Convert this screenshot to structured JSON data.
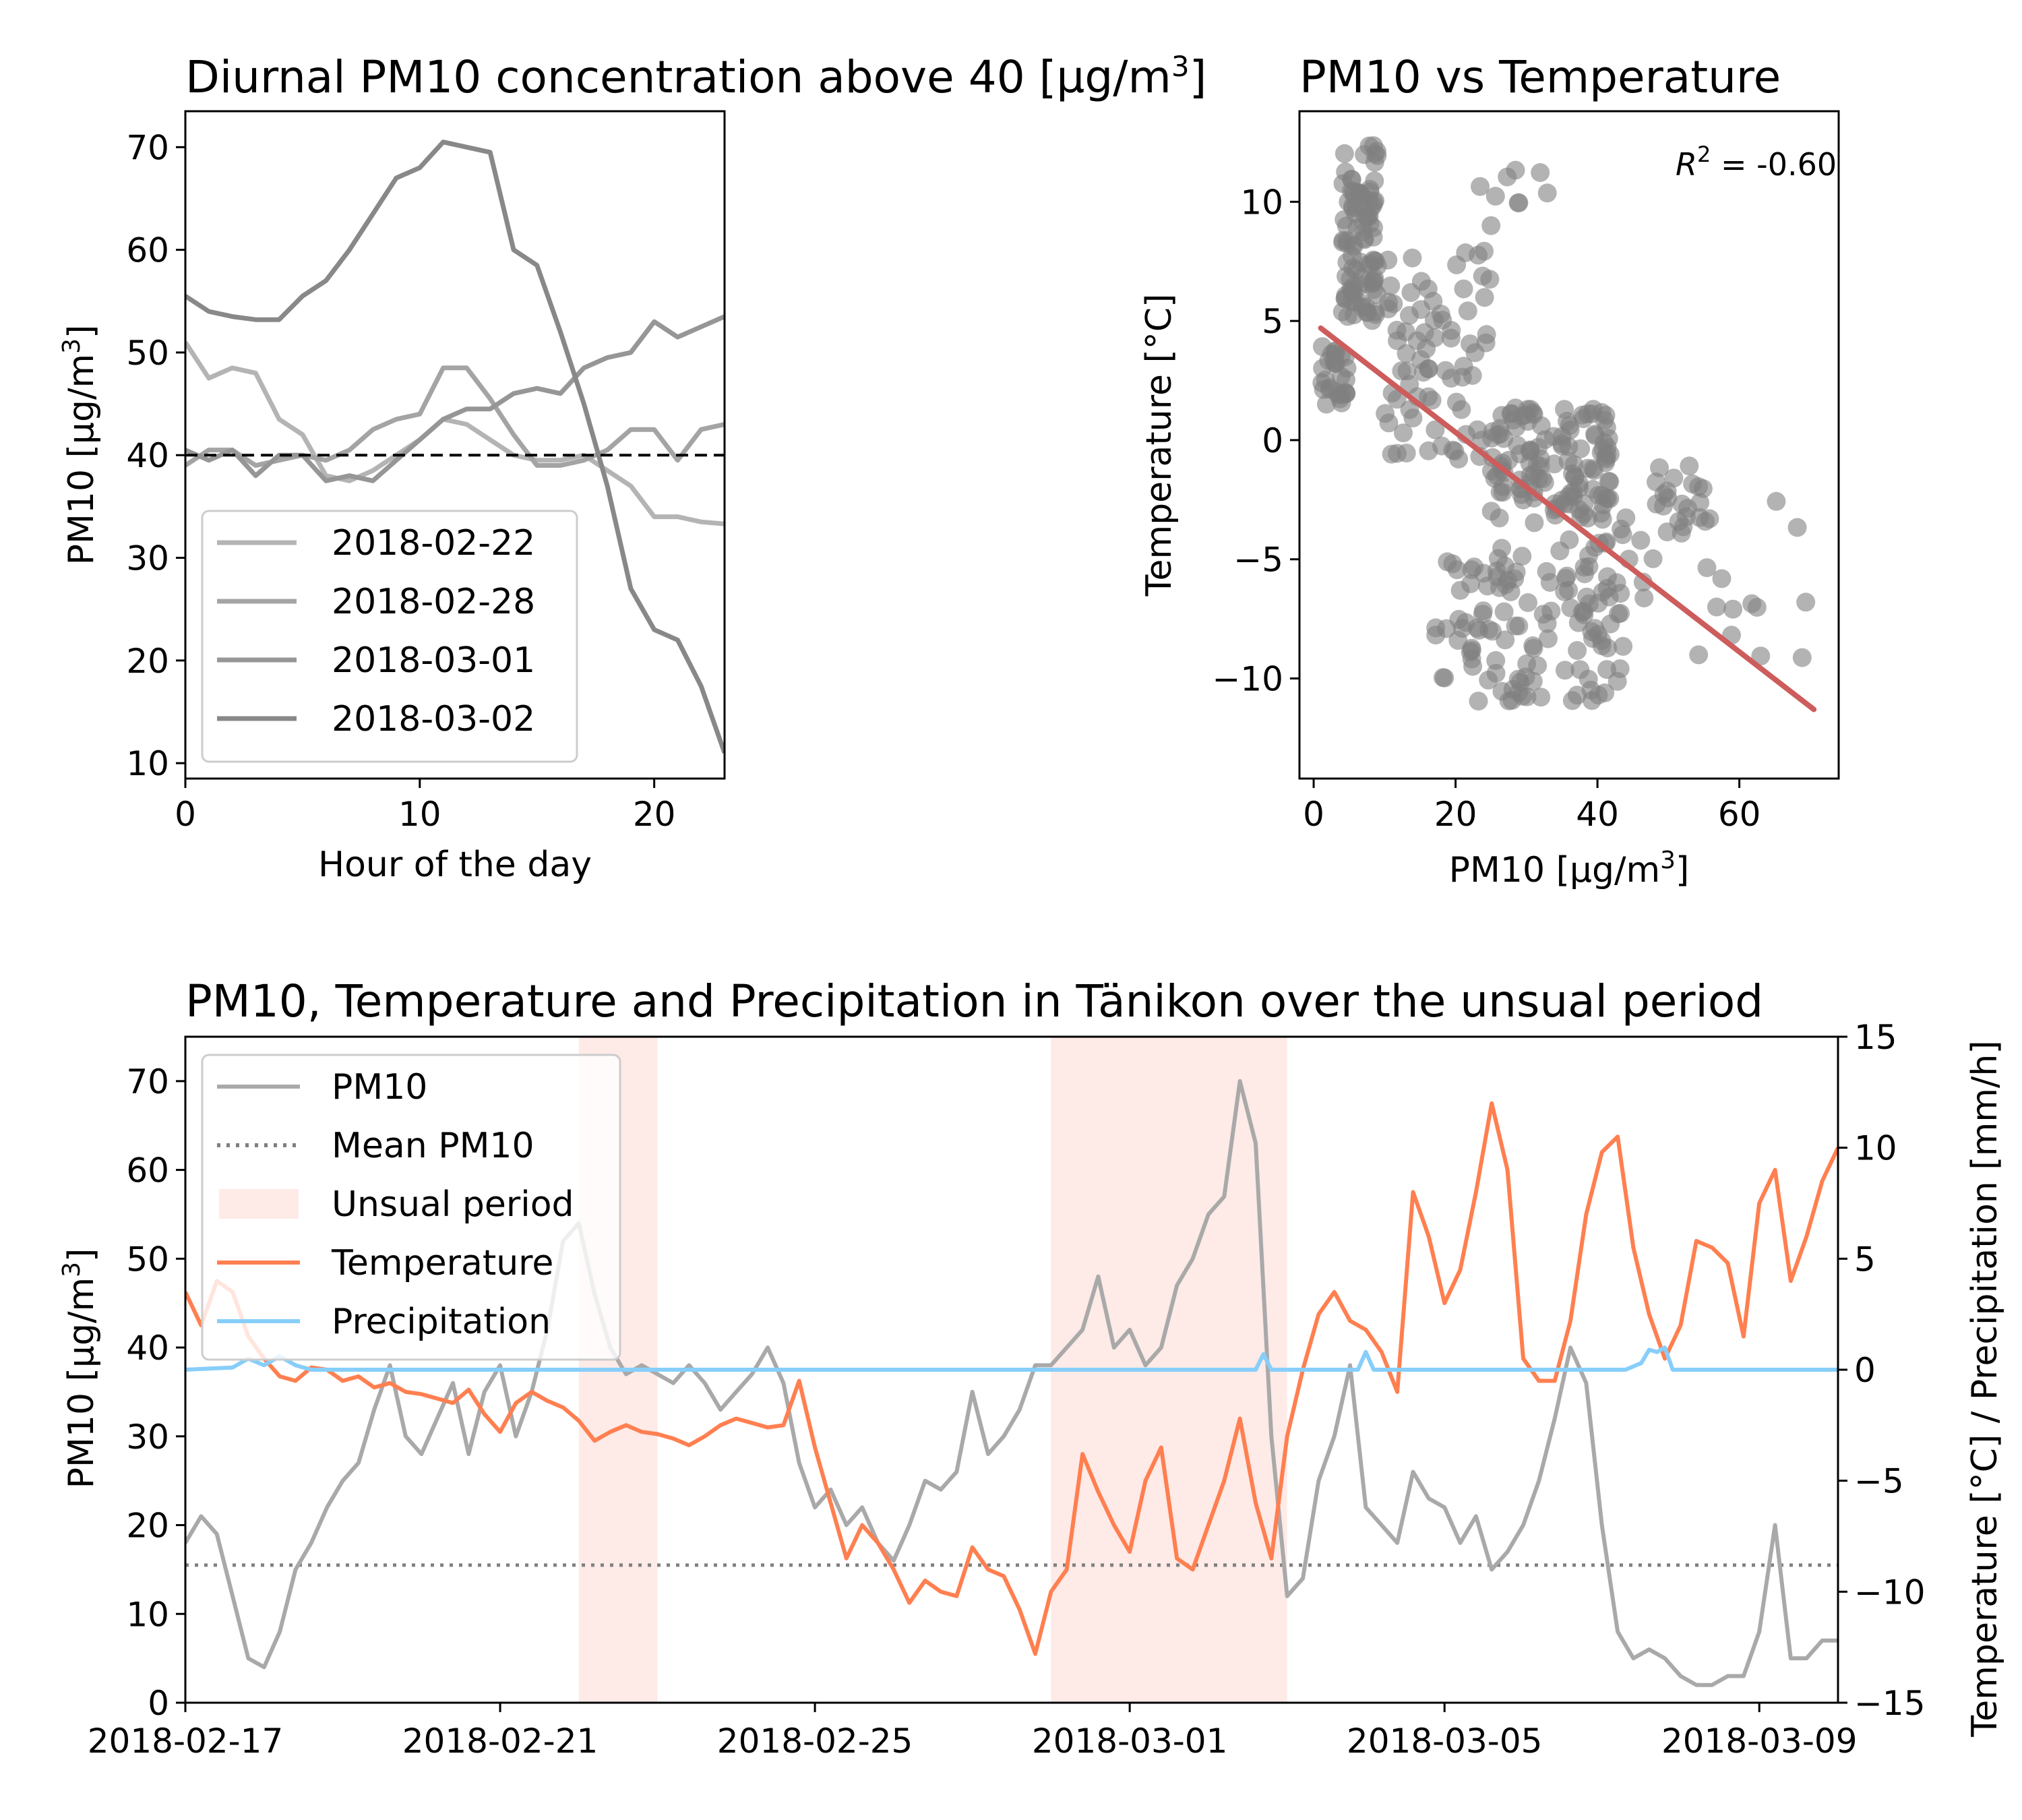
{
  "colors": {
    "pm10_gray": "#a9a9a9",
    "day1": "#b4b4b4",
    "day2": "#a4a4a4",
    "day3": "#969696",
    "day4": "#888888",
    "regression": "#cd5c5c",
    "scatter": "#808080",
    "temperature": "#ff7f50",
    "precipitation": "#87cefa",
    "unusual": "#fde3df"
  },
  "chart_data": [
    {
      "id": "diurnal",
      "type": "line",
      "title": "Diurnal PM10 concentration above 40 [µg/m³]",
      "xlabel": "Hour of the day",
      "ylabel": "PM10 [µg/m³]",
      "xlim": [
        0,
        23
      ],
      "ylim": [
        8.5,
        73.5
      ],
      "xticks": [
        0,
        10,
        20
      ],
      "yticks": [
        10,
        20,
        30,
        40,
        50,
        60,
        70
      ],
      "threshold": 40,
      "legend_position": "lower-left",
      "x": [
        0,
        1,
        2,
        3,
        4,
        5,
        6,
        7,
        8,
        9,
        10,
        11,
        12,
        13,
        14,
        15,
        16,
        17,
        18,
        19,
        20,
        21,
        22,
        23
      ],
      "series": [
        {
          "name": "2018-02-22",
          "color": "day1",
          "values": [
            51,
            47.5,
            48.5,
            48,
            43.5,
            42,
            38,
            37.5,
            38.5,
            40,
            41.5,
            43.5,
            43,
            41.5,
            40,
            39.5,
            39.5,
            40,
            38.5,
            37,
            34,
            34,
            33.5,
            33.3
          ]
        },
        {
          "name": "2018-02-28",
          "color": "day2",
          "values": [
            39,
            40.5,
            40.5,
            39,
            39.5,
            40,
            39.5,
            40.5,
            42.5,
            43.5,
            44,
            48.5,
            48.5,
            45.5,
            42,
            39,
            39,
            39.5,
            40.5,
            42.5,
            42.5,
            39.5,
            42.5,
            43
          ]
        },
        {
          "name": "2018-03-01",
          "color": "day3",
          "values": [
            40.5,
            39.5,
            40.5,
            38,
            40,
            40,
            37.5,
            38,
            37.5,
            39.5,
            41.5,
            43.5,
            44.5,
            44.5,
            46,
            46.5,
            46,
            48.5,
            49.5,
            50,
            53,
            51.5,
            52.5,
            53.5
          ]
        },
        {
          "name": "2018-03-02",
          "color": "day4",
          "values": [
            55.5,
            54,
            53.5,
            53.2,
            53.2,
            55.5,
            57,
            60,
            63.5,
            67,
            68,
            70.5,
            70,
            69.5,
            60,
            58.5,
            52,
            45,
            37,
            27,
            23,
            22,
            17.5,
            11
          ]
        }
      ]
    },
    {
      "id": "scatter",
      "type": "scatter",
      "title": "PM10 vs Temperature",
      "xlabel": "PM10 [µg/m³]",
      "ylabel": "Temperature [°C]",
      "xlim": [
        -2,
        74
      ],
      "ylim": [
        -14.2,
        13.8
      ],
      "xticks": [
        0,
        20,
        40,
        60
      ],
      "yticks": [
        -10,
        -5,
        0,
        5,
        10
      ],
      "annotation_prefix": "R",
      "annotation_sup": "2",
      "annotation_value": " =  -0.60",
      "regression": {
        "x": [
          1,
          70.5
        ],
        "y": [
          4.7,
          -11.3
        ]
      },
      "clusters": [
        {
          "x": [
            4,
            9
          ],
          "y": [
            5,
            12.5
          ],
          "n": 95
        },
        {
          "x": [
            1,
            5
          ],
          "y": [
            1.5,
            4
          ],
          "n": 30
        },
        {
          "x": [
            10,
            25
          ],
          "y": [
            -1,
            8
          ],
          "n": 75
        },
        {
          "x": [
            25,
            42
          ],
          "y": [
            -3.5,
            1.5
          ],
          "n": 125
        },
        {
          "x": [
            17,
            44
          ],
          "y": [
            -11,
            -4.5
          ],
          "n": 105
        },
        {
          "x": [
            36,
            48
          ],
          "y": [
            -8.5,
            -3
          ],
          "n": 30
        },
        {
          "x": [
            48,
            56
          ],
          "y": [
            -4,
            -1
          ],
          "n": 22
        },
        {
          "x": [
            52,
            70
          ],
          "y": [
            -9.5,
            -1.5
          ],
          "n": 14
        },
        {
          "x": [
            16,
            34
          ],
          "y": [
            9,
            11.5
          ],
          "n": 9
        }
      ]
    },
    {
      "id": "timeseries",
      "type": "line",
      "title": "PM10, Temperature and Precipitation in Tänikon over the unsual period",
      "ylabel": "PM10 [µg/m³]",
      "ylabel_right": "Temperature [°C] / Precipitation [mm/h]",
      "x_dates": [
        "2018-02-17",
        "2018-02-21",
        "2018-02-25",
        "2018-03-01",
        "2018-03-05",
        "2018-03-09"
      ],
      "xlim_days": [
        0,
        21
      ],
      "ylim": [
        0,
        75
      ],
      "yticks": [
        0,
        10,
        20,
        30,
        40,
        50,
        60,
        70
      ],
      "ylim_right": [
        -15,
        15
      ],
      "yticks_right": [
        -15,
        -10,
        -5,
        0,
        5,
        10,
        15
      ],
      "mean_pm10": 15.5,
      "legend_position": "upper-left",
      "legend": [
        "PM10",
        "Mean PM10",
        "Unsual period",
        "Temperature",
        "Precipitation"
      ],
      "unusual_periods": [
        [
          5,
          6
        ],
        [
          11,
          14
        ]
      ],
      "pm10": {
        "name": "PM10",
        "days": [
          0,
          0.2,
          0.4,
          0.6,
          0.8,
          1.0,
          1.2,
          1.4,
          1.6,
          1.8,
          2.0,
          2.2,
          2.4,
          2.6,
          2.8,
          3.0,
          3.2,
          3.4,
          3.6,
          3.8,
          4.0,
          4.2,
          4.4,
          4.6,
          4.8,
          5.0,
          5.2,
          5.4,
          5.6,
          5.8,
          6.0,
          6.2,
          6.4,
          6.6,
          6.8,
          7.0,
          7.2,
          7.4,
          7.6,
          7.8,
          8.0,
          8.2,
          8.4,
          8.6,
          8.8,
          9.0,
          9.2,
          9.4,
          9.6,
          9.8,
          10.0,
          10.2,
          10.4,
          10.6,
          10.8,
          11.0,
          11.2,
          11.4,
          11.6,
          11.8,
          12.0,
          12.2,
          12.4,
          12.6,
          12.8,
          13.0,
          13.2,
          13.4,
          13.6,
          13.8,
          14.0,
          14.2,
          14.4,
          14.6,
          14.8,
          15.0,
          15.2,
          15.4,
          15.6,
          15.8,
          16.0,
          16.2,
          16.4,
          16.6,
          16.8,
          17.0,
          17.2,
          17.4,
          17.6,
          17.8,
          18.0,
          18.2,
          18.4,
          18.6,
          18.8,
          19.0,
          19.2,
          19.4,
          19.6,
          19.8,
          20.0,
          20.2,
          20.4,
          20.6,
          20.8,
          21.0
        ],
        "values": [
          18,
          21,
          19,
          12,
          5,
          4,
          8,
          15,
          18,
          22,
          25,
          27,
          33,
          38,
          30,
          28,
          32,
          36,
          28,
          35,
          38,
          30,
          35,
          42,
          52,
          54,
          46,
          40,
          37,
          38,
          37,
          36,
          38,
          36,
          33,
          35,
          37,
          40,
          36,
          27,
          22,
          24,
          20,
          22,
          18,
          16,
          20,
          25,
          24,
          26,
          35,
          28,
          30,
          33,
          38,
          38,
          40,
          42,
          48,
          40,
          42,
          38,
          40,
          47,
          50,
          55,
          57,
          70,
          63,
          30,
          12,
          14,
          25,
          30,
          38,
          22,
          20,
          18,
          26,
          23,
          22,
          18,
          21,
          15,
          17,
          20,
          25,
          32,
          40,
          36,
          20,
          8,
          5,
          6,
          5,
          3,
          2,
          2,
          3,
          3,
          8,
          20,
          5,
          5,
          7,
          7
        ]
      },
      "temperature": {
        "name": "Temperature",
        "days": [
          0,
          0.2,
          0.4,
          0.6,
          0.8,
          1.0,
          1.2,
          1.4,
          1.6,
          1.8,
          2.0,
          2.2,
          2.4,
          2.6,
          2.8,
          3.0,
          3.2,
          3.4,
          3.6,
          3.8,
          4.0,
          4.2,
          4.4,
          4.6,
          4.8,
          5.0,
          5.2,
          5.4,
          5.6,
          5.8,
          6.0,
          6.2,
          6.4,
          6.6,
          6.8,
          7.0,
          7.2,
          7.4,
          7.6,
          7.8,
          8.0,
          8.2,
          8.4,
          8.6,
          8.8,
          9.0,
          9.2,
          9.4,
          9.6,
          9.8,
          10.0,
          10.2,
          10.4,
          10.6,
          10.8,
          11.0,
          11.2,
          11.4,
          11.6,
          11.8,
          12.0,
          12.2,
          12.4,
          12.6,
          12.8,
          13.0,
          13.2,
          13.4,
          13.6,
          13.8,
          14.0,
          14.2,
          14.4,
          14.6,
          14.8,
          15.0,
          15.2,
          15.4,
          15.6,
          15.8,
          16.0,
          16.2,
          16.4,
          16.6,
          16.8,
          17.0,
          17.2,
          17.4,
          17.6,
          17.8,
          18.0,
          18.2,
          18.4,
          18.6,
          18.8,
          19.0,
          19.2,
          19.4,
          19.6,
          19.8,
          20.0,
          20.2,
          20.4,
          20.6,
          20.8,
          21.0
        ],
        "values": [
          3.5,
          2,
          4,
          3.5,
          1.5,
          0.5,
          -0.3,
          -0.5,
          0.1,
          0,
          -0.5,
          -0.3,
          -0.8,
          -0.6,
          -1,
          -1.1,
          -1.3,
          -1.5,
          -0.9,
          -2,
          -2.8,
          -1.5,
          -1,
          -1.4,
          -1.7,
          -2.3,
          -3.2,
          -2.8,
          -2.5,
          -2.8,
          -2.9,
          -3.1,
          -3.4,
          -3,
          -2.5,
          -2.2,
          -2.4,
          -2.6,
          -2.5,
          -0.5,
          -3.5,
          -6,
          -8.5,
          -7,
          -7.8,
          -9,
          -10.5,
          -9.5,
          -10,
          -10.2,
          -8,
          -9,
          -9.3,
          -10.8,
          -12.8,
          -10,
          -9,
          -3.8,
          -5.5,
          -7,
          -8.2,
          -5,
          -3.5,
          -8.5,
          -9,
          -7,
          -5,
          -2.2,
          -6,
          -8.5,
          -3,
          0,
          2.5,
          3.5,
          2.2,
          1.8,
          0.8,
          -1,
          8,
          6,
          3,
          4.5,
          8,
          12,
          9,
          0.5,
          -0.5,
          -0.5,
          2.2,
          7,
          9.8,
          10.5,
          5.5,
          2.5,
          0.5,
          2,
          5.8,
          5.5,
          4.8,
          1.5,
          7.5,
          9,
          4,
          6,
          8.5,
          10
        ]
      },
      "precipitation": {
        "name": "Precipitation",
        "days": [
          0,
          0.6,
          0.8,
          1.0,
          1.2,
          1.4,
          1.6,
          13.6,
          13.7,
          13.8,
          14.0,
          14.9,
          15.0,
          15.1,
          18.3,
          18.5,
          18.6,
          18.7,
          18.8,
          18.9,
          21.0
        ],
        "values": [
          0,
          0.1,
          0.5,
          0.2,
          0.6,
          0.2,
          0,
          0,
          0.7,
          0,
          0,
          0,
          0.8,
          0,
          0,
          0.3,
          0.9,
          0.8,
          1.0,
          0,
          0
        ]
      }
    }
  ]
}
